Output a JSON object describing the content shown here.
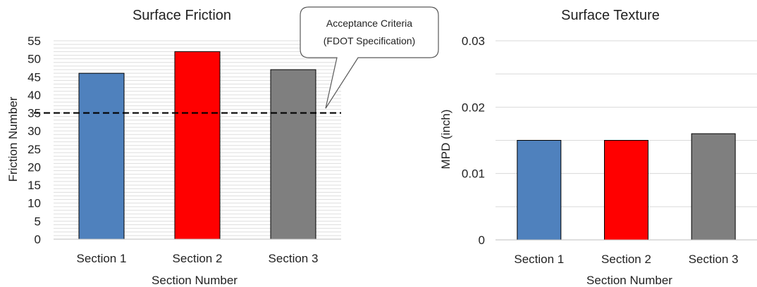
{
  "chart_data": [
    {
      "type": "bar",
      "title": "Surface Friction",
      "xlabel": "Section Number",
      "ylabel": "Friction Number",
      "categories": [
        "Section 1",
        "Section 2",
        "Section 3"
      ],
      "values": [
        46,
        52,
        47
      ],
      "colors": [
        "#4f81bd",
        "#ff0000",
        "#7f7f7f"
      ],
      "ylim": [
        0,
        55
      ],
      "yticks": [
        "0",
        "5",
        "10",
        "15",
        "20",
        "25",
        "30",
        "35",
        "40",
        "45",
        "50",
        "55"
      ],
      "grid": true,
      "reference_line": {
        "value": 35,
        "style": "dashed",
        "color": "#000000"
      },
      "annotation": {
        "line1": "Acceptance Criteria",
        "line2": "(FDOT Specification)"
      }
    },
    {
      "type": "bar",
      "title": "Surface Texture",
      "xlabel": "Section Number",
      "ylabel": "MPD (inch)",
      "categories": [
        "Section 1",
        "Section 2",
        "Section 3"
      ],
      "values": [
        0.015,
        0.015,
        0.016
      ],
      "colors": [
        "#4f81bd",
        "#ff0000",
        "#7f7f7f"
      ],
      "ylim": [
        0,
        0.03
      ],
      "yticks": [
        "0",
        "0.01",
        "0.02",
        "0.03"
      ],
      "grid": true
    }
  ]
}
